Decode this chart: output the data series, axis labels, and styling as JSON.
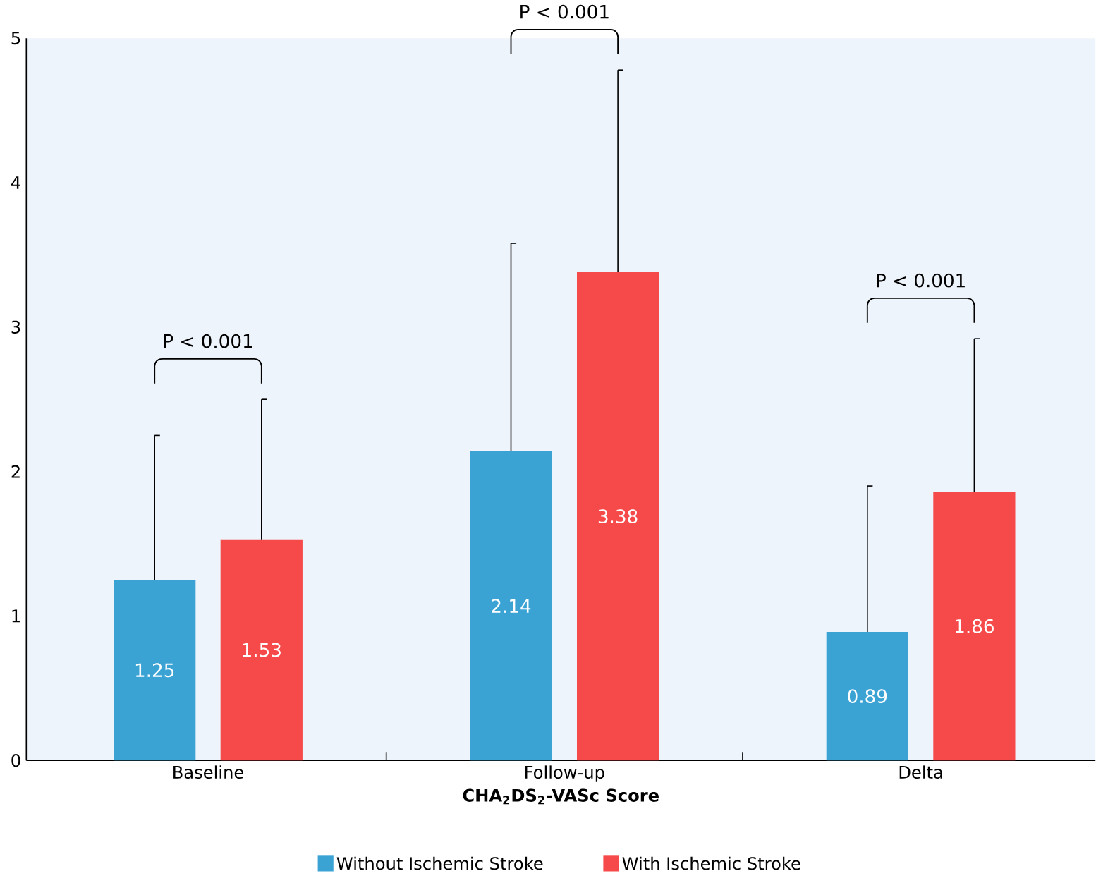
{
  "chart_data": {
    "type": "bar",
    "xlabel": "**CHA$_{2}$DS$_{2}$-VASc Score**",
    "categories": [
      "Baseline",
      "Follow-up",
      "Delta"
    ],
    "series": [
      {
        "name": "Without Ischemic Stroke",
        "color": "#3ba3d4",
        "values": [
          1.25,
          2.14,
          0.89
        ],
        "value_labels": [
          "1.25",
          "2.14",
          "0.89"
        ],
        "errors": [
          [
            1.25,
            2.25
          ],
          [
            2.14,
            3.58
          ],
          [
            0.89,
            1.9
          ]
        ]
      },
      {
        "name": "With Ischemic Stroke",
        "color": "#f64a4a",
        "values": [
          1.53,
          3.38,
          1.86
        ],
        "value_labels": [
          "1.53",
          "3.38",
          "1.86"
        ],
        "errors": [
          [
            1.53,
            2.5
          ],
          [
            3.38,
            4.78
          ],
          [
            1.86,
            2.92
          ]
        ]
      }
    ],
    "annotations": [
      "P < 0.001",
      "P < 0.001",
      "P < 0.001"
    ],
    "ylim": [
      0,
      5
    ],
    "yticks": [
      0,
      1,
      2,
      3,
      4,
      5
    ],
    "grid": false,
    "legend": "bottom"
  }
}
